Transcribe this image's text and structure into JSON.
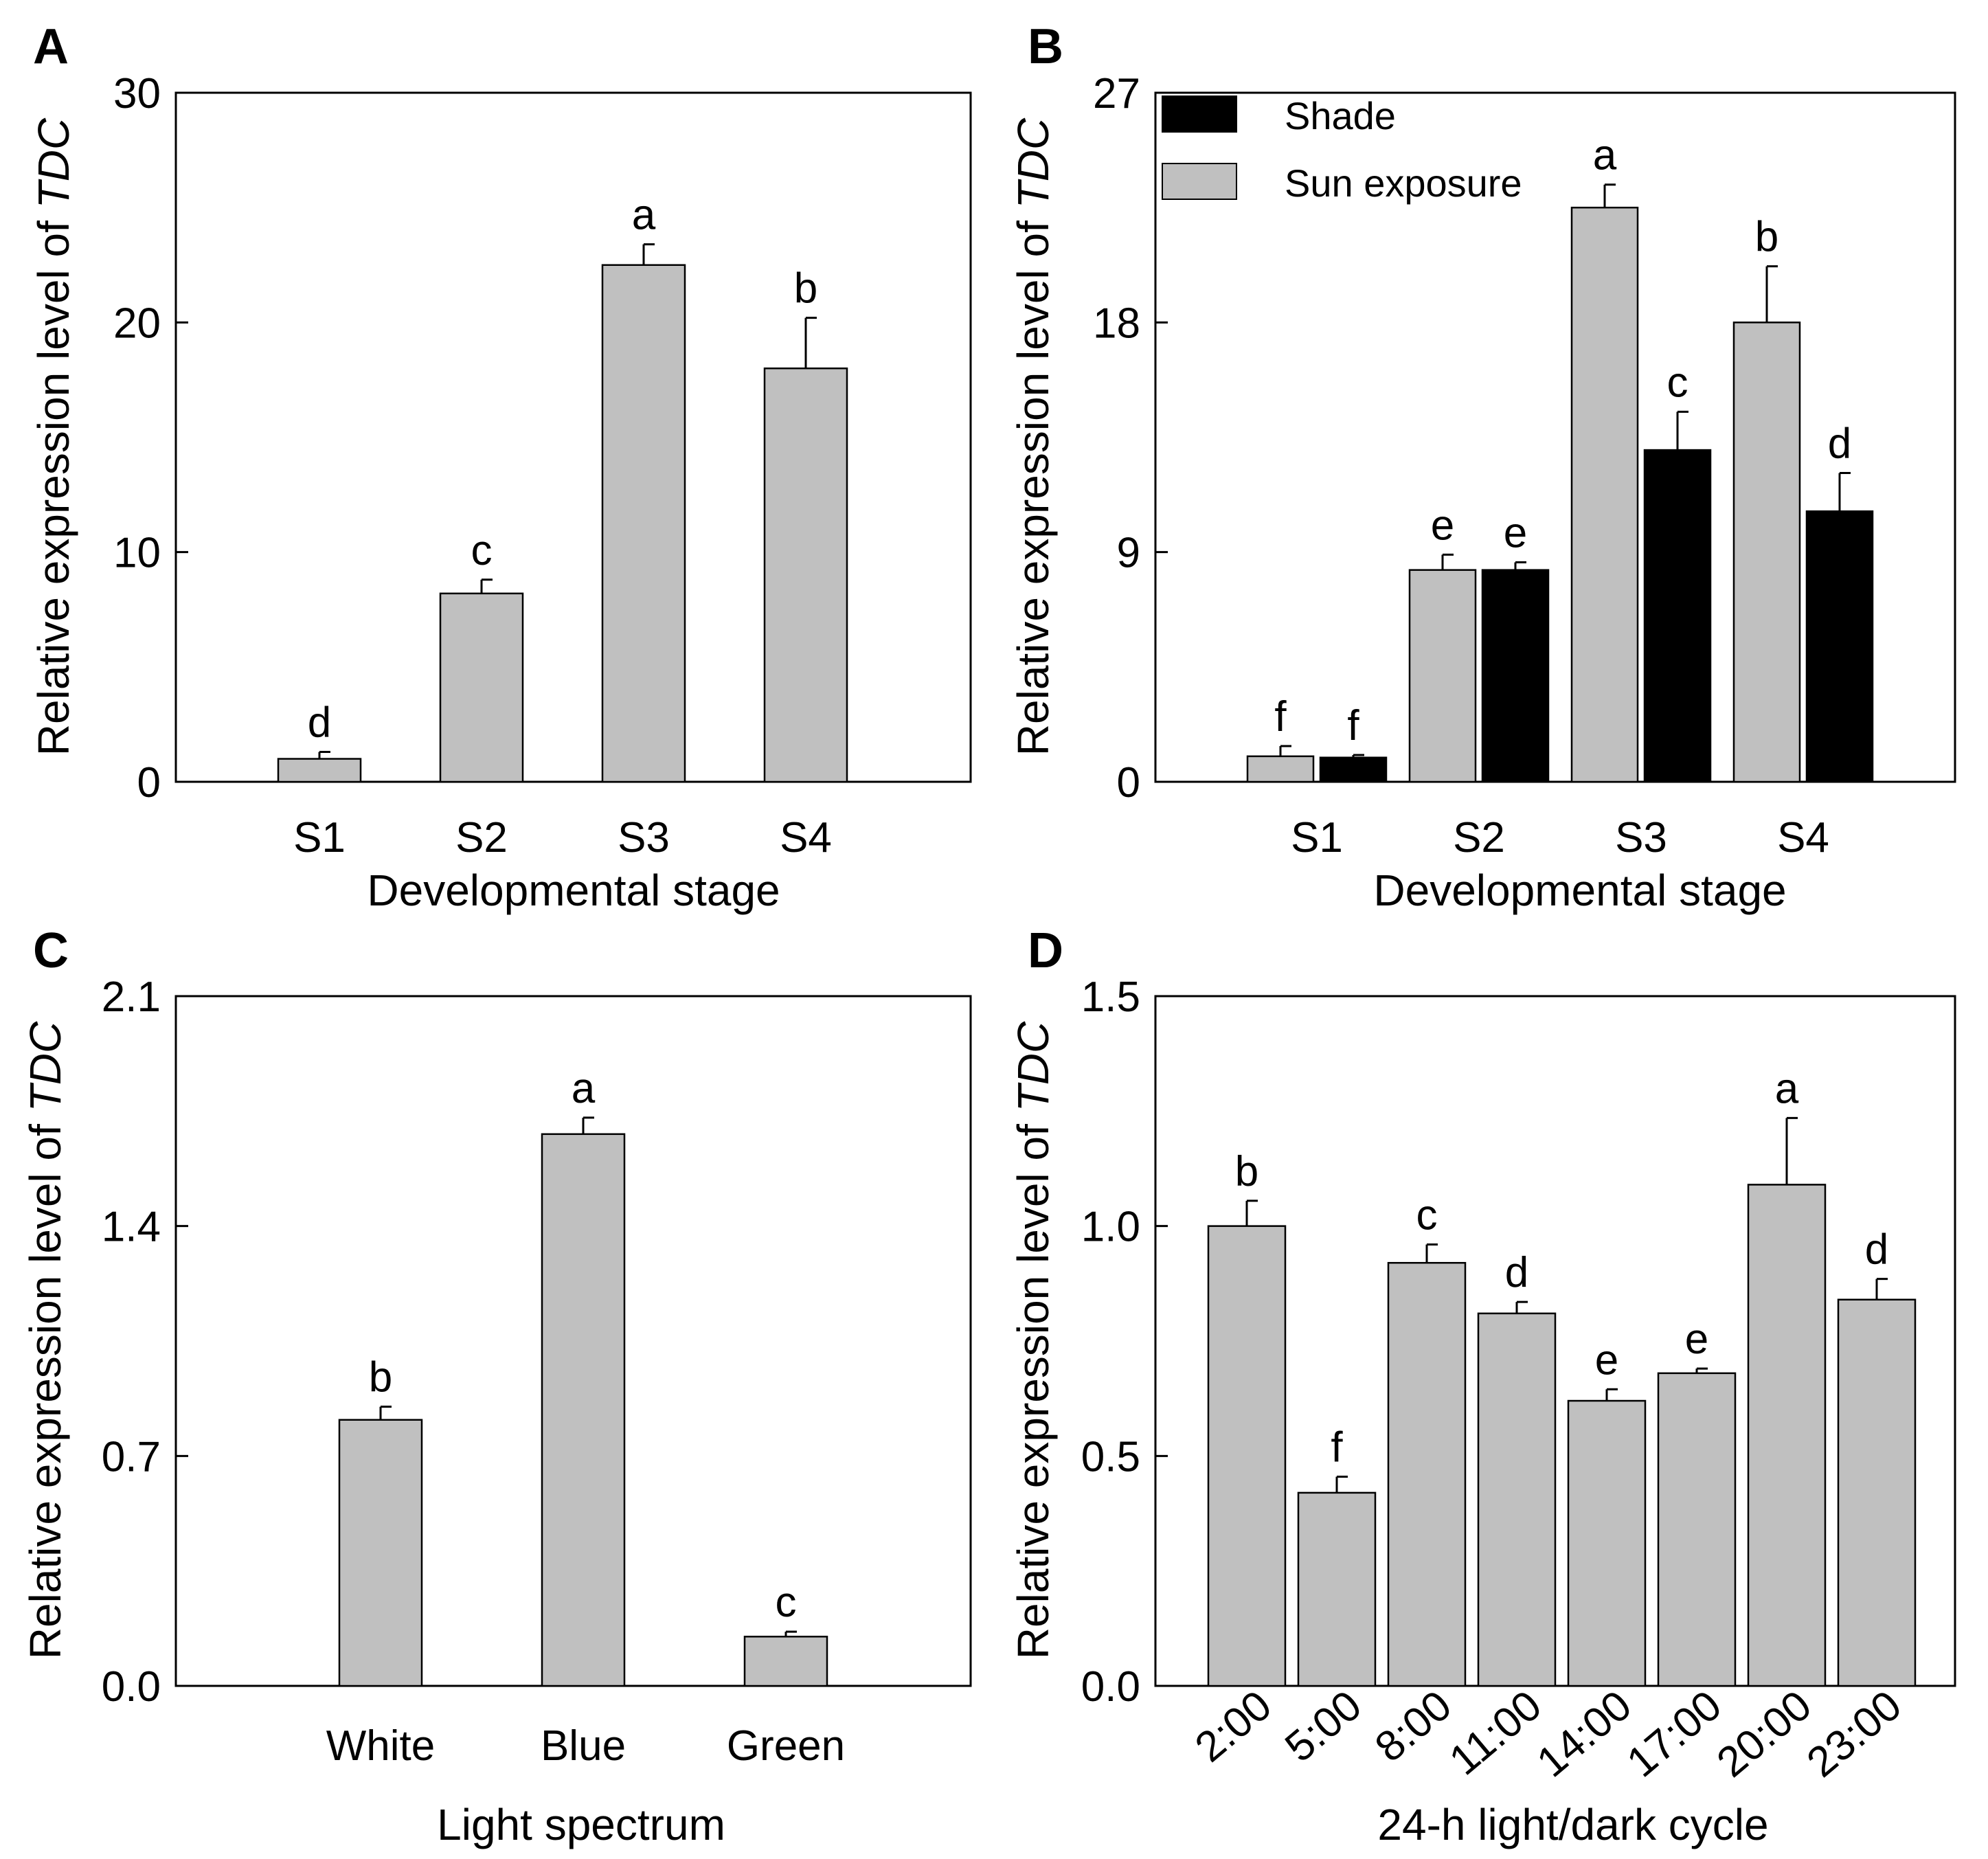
{
  "colors": {
    "sun_exposure": "#c0c0c0",
    "shade": "#000000",
    "default_bar": "#c0c0c0"
  },
  "chart_data": [
    {
      "panel": "A",
      "type": "bar",
      "title": "",
      "xlabel": "Developmental stage",
      "ylabel_prefix": "Relative expression level of ",
      "ylabel_italic": "TDC",
      "ylim": [
        0,
        30
      ],
      "yticks": [
        0,
        10,
        20,
        30
      ],
      "tick_labels": [
        "0",
        "10",
        "20",
        "30"
      ],
      "categories": [
        "S1",
        "S2",
        "S3",
        "S4"
      ],
      "series": [
        {
          "name": "",
          "color": "#c0c0c0",
          "values": [
            1.0,
            8.2,
            22.5,
            18.0
          ],
          "errors": [
            0.3,
            0.6,
            0.9,
            2.2
          ],
          "letters": [
            "d",
            "c",
            "a",
            "b"
          ]
        }
      ]
    },
    {
      "panel": "B",
      "type": "bar",
      "title": "",
      "xlabel": "Developmental stage",
      "ylabel_prefix": "Relative expression level of ",
      "ylabel_italic": "TDC",
      "ylim": [
        0,
        27
      ],
      "yticks": [
        0,
        9,
        18,
        27
      ],
      "tick_labels": [
        "0",
        "9",
        "18",
        "27"
      ],
      "categories": [
        "S1",
        "S2",
        "S3",
        "S4"
      ],
      "legend": [
        {
          "label": "Shade",
          "color": "#000000"
        },
        {
          "label": "Sun exposure",
          "color": "#c0c0c0"
        }
      ],
      "legend_position": "top-left",
      "series": [
        {
          "name": "Sun exposure",
          "color": "#c0c0c0",
          "values": [
            1.0,
            8.3,
            22.5,
            18.0
          ],
          "errors": [
            0.4,
            0.6,
            0.9,
            2.2
          ],
          "letters": [
            "f",
            "e",
            "a",
            "b"
          ]
        },
        {
          "name": "Shade",
          "color": "#000000",
          "values": [
            0.95,
            8.3,
            13.0,
            10.6
          ],
          "errors": [
            0.1,
            0.3,
            1.5,
            1.5
          ],
          "letters": [
            "f",
            "e",
            "c",
            "d"
          ]
        }
      ]
    },
    {
      "panel": "C",
      "type": "bar",
      "title": "",
      "xlabel": "Light spectrum",
      "ylabel_prefix": "Relative expression level of ",
      "ylabel_italic": "TDC",
      "ylim": [
        0,
        2.1
      ],
      "yticks": [
        0,
        0.7,
        1.4,
        2.1
      ],
      "tick_labels": [
        "0.0",
        "0.7",
        "1.4",
        "2.1"
      ],
      "categories": [
        "White",
        "Blue",
        "Green"
      ],
      "series": [
        {
          "name": "",
          "color": "#c0c0c0",
          "values": [
            0.81,
            1.68,
            0.15
          ],
          "errors": [
            0.04,
            0.05,
            0.015
          ],
          "letters": [
            "b",
            "a",
            "c"
          ]
        }
      ]
    },
    {
      "panel": "D",
      "type": "bar",
      "title": "",
      "xlabel": "24-h light/dark cycle",
      "ylabel_prefix": "Relative expression level of ",
      "ylabel_italic": "TDC",
      "ylim": [
        0,
        1.5
      ],
      "yticks": [
        0,
        0.5,
        1.0,
        1.5
      ],
      "tick_labels": [
        "0.0",
        "0.5",
        "1.0",
        "1.5"
      ],
      "categories": [
        "2:00",
        "5:00",
        "8:00",
        "11:00",
        "14:00",
        "17:00",
        "20:00",
        "23:00"
      ],
      "rotated_labels": true,
      "series": [
        {
          "name": "",
          "color": "#c0c0c0",
          "values": [
            1.0,
            0.42,
            0.92,
            0.81,
            0.62,
            0.68,
            1.09,
            0.84
          ],
          "errors": [
            0.055,
            0.035,
            0.04,
            0.025,
            0.025,
            0.01,
            0.145,
            0.045
          ],
          "letters": [
            "b",
            "f",
            "c",
            "d",
            "e",
            "e",
            "a",
            "d"
          ]
        }
      ]
    }
  ]
}
